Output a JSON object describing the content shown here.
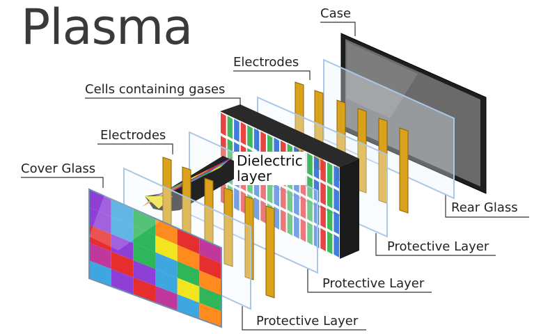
{
  "title": "Plasma",
  "labels": {
    "case": "Case",
    "electrodes_top": "Electrodes",
    "cells": "Cells containing gases",
    "electrodes_front": "Electrodes",
    "cover_glass": "Cover Glass",
    "dielectric_line1": "Dielectric",
    "dielectric_line2": "layer",
    "rear_glass": "Rear Glass",
    "protective_layer_1": "Protective Layer",
    "protective_layer_2": "Protective Layer",
    "protective_layer_3": "Protective Layer"
  },
  "colors": {
    "case": "#1e1e1e",
    "electrode": "#d9a21a",
    "electrode_edge": "#8a6208",
    "glass_edge": "#a9c7e6",
    "leader_line": "#333333",
    "cell_red": "#e53030",
    "cell_green": "#2eaf4a",
    "cell_blue": "#2f6fd8",
    "palette": [
      "#8e3fd6",
      "#3fa7e0",
      "#2fb55a",
      "#f2e41f",
      "#ff8a1e",
      "#e62e2e",
      "#c0389b"
    ]
  }
}
